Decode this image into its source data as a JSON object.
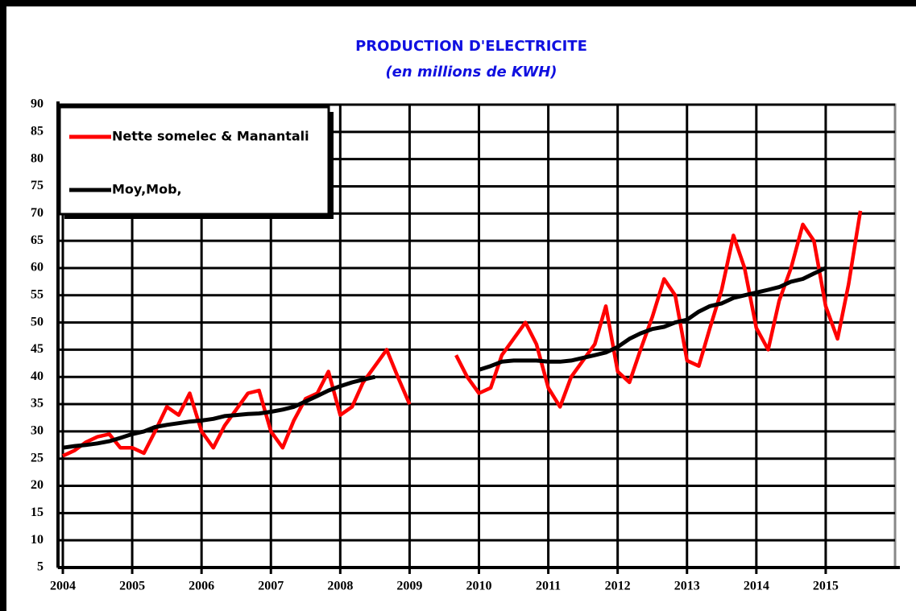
{
  "chart_data": {
    "type": "line",
    "title": "PRODUCTION D'ELECTRICITE",
    "subtitle": "(en millions  de KWH)",
    "x": [
      2004,
      2004.17,
      2004.33,
      2004.5,
      2004.67,
      2004.83,
      2005,
      2005.17,
      2005.33,
      2005.5,
      2005.67,
      2005.83,
      2006,
      2006.17,
      2006.33,
      2006.5,
      2006.67,
      2006.83,
      2007,
      2007.17,
      2007.33,
      2007.5,
      2007.67,
      2007.83,
      2008,
      2008.17,
      2008.33,
      2008.5,
      2008.67,
      2008.83,
      2009,
      2009.17,
      2009.33,
      2009.5,
      2009.67,
      2009.83,
      2010,
      2010.17,
      2010.33,
      2010.5,
      2010.67,
      2010.83,
      2011,
      2011.17,
      2011.33,
      2011.5,
      2011.67,
      2011.83,
      2012,
      2012.17,
      2012.33,
      2012.5,
      2012.67,
      2012.83,
      2013,
      2013.17,
      2013.33,
      2013.5,
      2013.67,
      2013.83,
      2014,
      2014.17,
      2014.33,
      2014.5,
      2014.67,
      2014.83,
      2015,
      2015.17,
      2015.33,
      2015.5
    ],
    "series": [
      {
        "name": "Nette somelec & Manantali",
        "color": "#ff0000",
        "values": [
          25.5,
          26.5,
          28,
          29,
          29.5,
          27,
          27,
          26,
          30,
          34.5,
          33,
          37,
          30,
          27,
          31,
          34,
          37,
          37.5,
          30,
          27,
          32,
          36,
          37,
          41,
          33,
          34.5,
          39,
          42,
          45,
          40,
          35,
          null,
          null,
          null,
          44,
          40,
          37,
          38,
          44,
          47,
          50,
          46,
          38,
          34.5,
          40,
          43,
          46,
          53,
          41,
          39,
          45,
          51,
          58,
          55,
          43,
          42,
          49,
          56,
          66,
          60,
          49,
          45,
          54,
          60,
          68,
          65,
          53,
          47,
          57,
          70.5
        ]
      },
      {
        "name": "Moy,Mob,",
        "color": "#000000",
        "values": [
          27,
          27.3,
          27.5,
          27.8,
          28.2,
          28.8,
          29.5,
          30,
          30.8,
          31.2,
          31.5,
          31.8,
          32,
          32.3,
          32.8,
          33,
          33.2,
          33.3,
          33.6,
          34,
          34.5,
          35.5,
          36.5,
          37.5,
          38.3,
          39,
          39.5,
          40,
          null,
          null,
          null,
          null,
          null,
          null,
          null,
          null,
          41.3,
          42,
          42.8,
          43,
          43,
          43,
          42.8,
          42.8,
          43,
          43.5,
          44,
          44.5,
          45.5,
          47,
          48,
          48.8,
          49.2,
          50,
          50.5,
          52,
          53,
          53.5,
          54.5,
          55,
          55.5,
          56,
          56.5,
          57.5,
          58,
          59,
          60,
          null,
          null,
          null
        ]
      }
    ],
    "xlim": [
      2004,
      2016
    ],
    "xticks": [
      2004,
      2005,
      2006,
      2007,
      2008,
      2009,
      2010,
      2011,
      2012,
      2013,
      2014,
      2015
    ],
    "ylim": [
      5,
      90
    ],
    "yticks": [
      5,
      10,
      15,
      20,
      25,
      30,
      35,
      40,
      45,
      50,
      55,
      60,
      65,
      70,
      75,
      80,
      85,
      90
    ],
    "grid": true,
    "legend": "upper left"
  }
}
